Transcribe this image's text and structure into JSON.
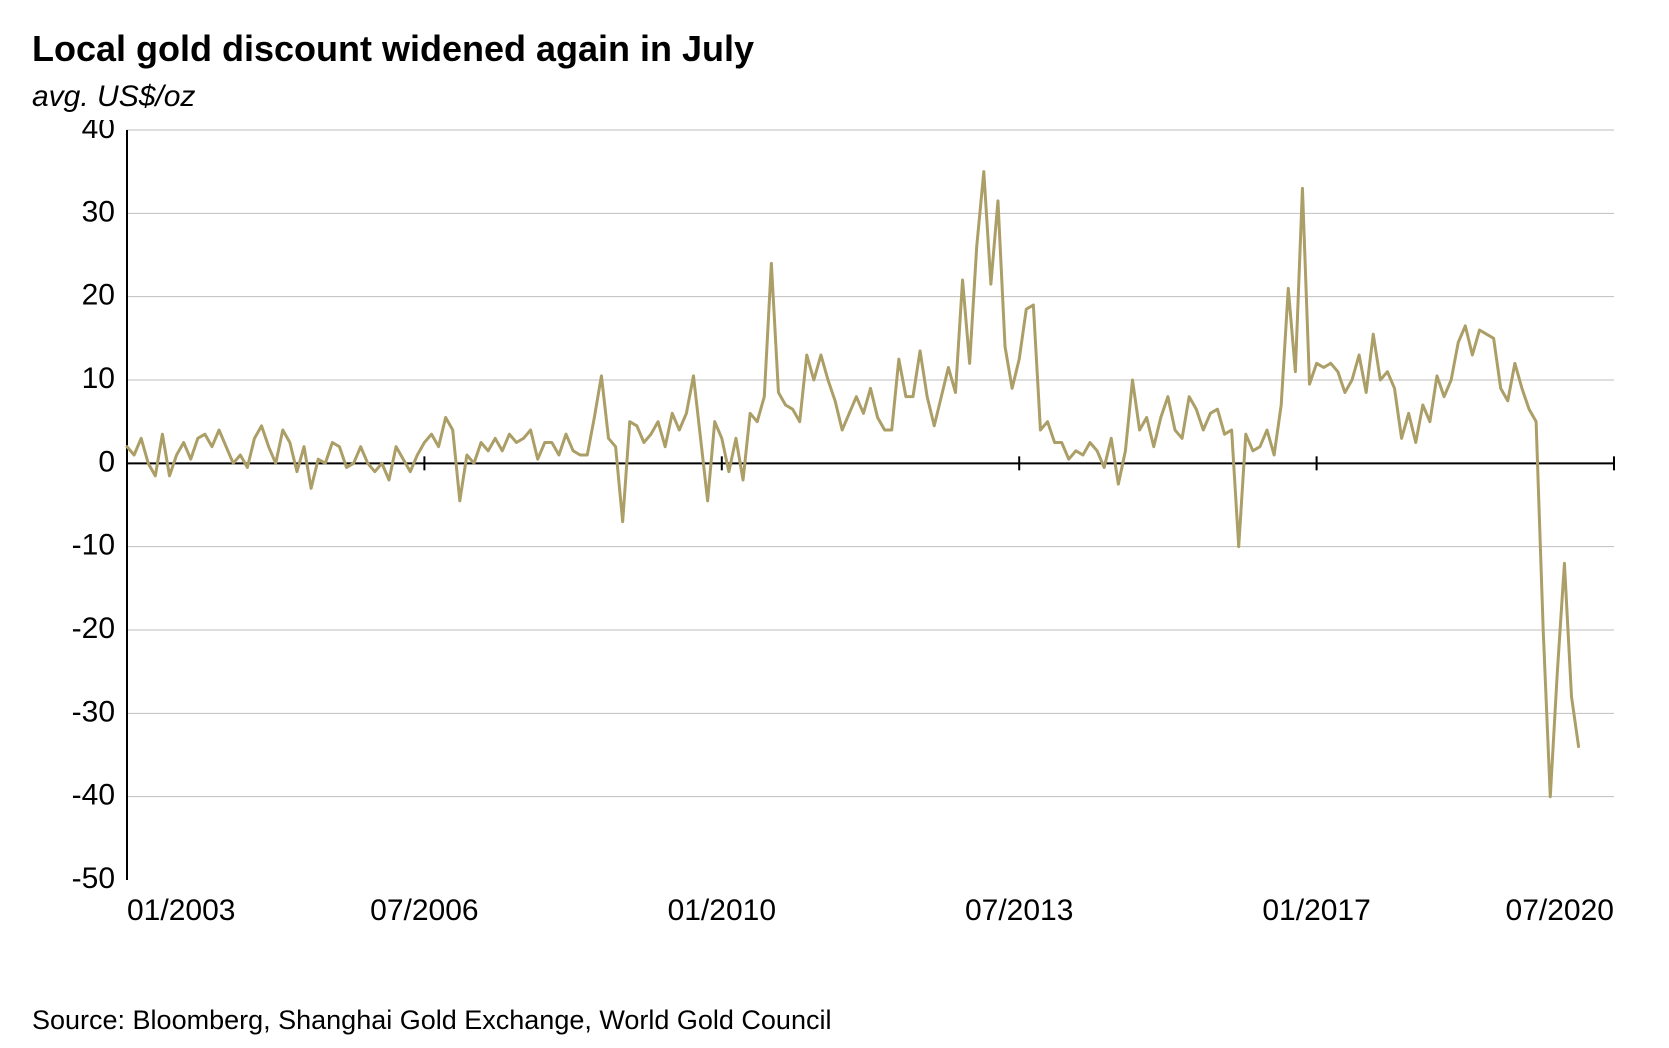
{
  "title": "Local gold discount widened again in July",
  "subtitle": "avg. US$/oz",
  "source": "Source: Bloomberg, Shanghai Gold Exchange, World Gold Council",
  "chart": {
    "type": "line",
    "background_color": "#ffffff",
    "grid_color": "#bfbfbf",
    "axis_color": "#000000",
    "line_color": "#ac9e67",
    "line_width": 3,
    "tick_font_size": 30,
    "y": {
      "min": -50,
      "max": 40,
      "ticks": [
        -50,
        -40,
        -30,
        -20,
        -10,
        0,
        10,
        20,
        30,
        40
      ]
    },
    "x": {
      "min": 0,
      "max": 210,
      "tick_positions": [
        0,
        42,
        84,
        126,
        168,
        210
      ],
      "tick_labels": [
        "01/2003",
        "07/2006",
        "01/2010",
        "07/2013",
        "01/2017",
        "07/2020"
      ]
    },
    "series": [
      2.0,
      1.0,
      3.0,
      0.0,
      -1.5,
      3.5,
      -1.5,
      1.0,
      2.5,
      0.5,
      3.0,
      3.5,
      2.0,
      4.0,
      2.0,
      0.0,
      1.0,
      -0.5,
      3.0,
      4.5,
      2.0,
      0.0,
      4.0,
      2.5,
      -1.0,
      2.0,
      -3.0,
      0.5,
      0.0,
      2.5,
      2.0,
      -0.5,
      0.0,
      2.0,
      0.0,
      -1.0,
      0.0,
      -2.0,
      2.0,
      0.5,
      -1.0,
      1.0,
      2.5,
      3.5,
      2.0,
      5.5,
      4.0,
      -4.5,
      1.0,
      0.0,
      2.5,
      1.5,
      3.0,
      1.5,
      3.5,
      2.5,
      3.0,
      4.0,
      0.5,
      2.5,
      2.5,
      1.0,
      3.5,
      1.5,
      1.0,
      1.0,
      5.5,
      10.5,
      3.0,
      2.0,
      -7.0,
      5.0,
      4.5,
      2.5,
      3.5,
      5.0,
      2.0,
      6.0,
      4.0,
      6.0,
      10.5,
      3.0,
      -4.5,
      5.0,
      3.0,
      -1.0,
      3.0,
      -2.0,
      6.0,
      5.0,
      8.0,
      24.0,
      8.5,
      7.0,
      6.5,
      5.0,
      13.0,
      10.0,
      13.0,
      10.0,
      7.5,
      4.0,
      6.0,
      8.0,
      6.0,
      9.0,
      5.5,
      4.0,
      4.0,
      12.5,
      8.0,
      8.0,
      13.5,
      8.0,
      4.5,
      8.0,
      11.5,
      8.5,
      22.0,
      12.0,
      26.0,
      35.0,
      21.5,
      31.5,
      14.0,
      9.0,
      12.5,
      18.5,
      19.0,
      4.0,
      5.0,
      2.5,
      2.5,
      0.5,
      1.5,
      1.0,
      2.5,
      1.5,
      -0.5,
      3.0,
      -2.5,
      1.5,
      10.0,
      4.0,
      5.5,
      2.0,
      5.5,
      8.0,
      4.0,
      3.0,
      8.0,
      6.5,
      4.0,
      6.0,
      6.5,
      3.5,
      4.0,
      -10.0,
      3.5,
      1.5,
      2.0,
      4.0,
      1.0,
      7.0,
      21.0,
      11.0,
      33.0,
      9.5,
      12.0,
      11.5,
      12.0,
      11.0,
      8.5,
      10.0,
      13.0,
      8.5,
      15.5,
      10.0,
      11.0,
      9.0,
      3.0,
      6.0,
      2.5,
      7.0,
      5.0,
      10.5,
      8.0,
      10.0,
      14.5,
      16.5,
      13.0,
      16.0,
      15.5,
      15.0,
      9.0,
      7.5,
      12.0,
      9.0,
      6.5,
      5.0,
      -20.0,
      -40.0,
      -25.0,
      -12.0,
      -28.0,
      -34.0
    ]
  }
}
